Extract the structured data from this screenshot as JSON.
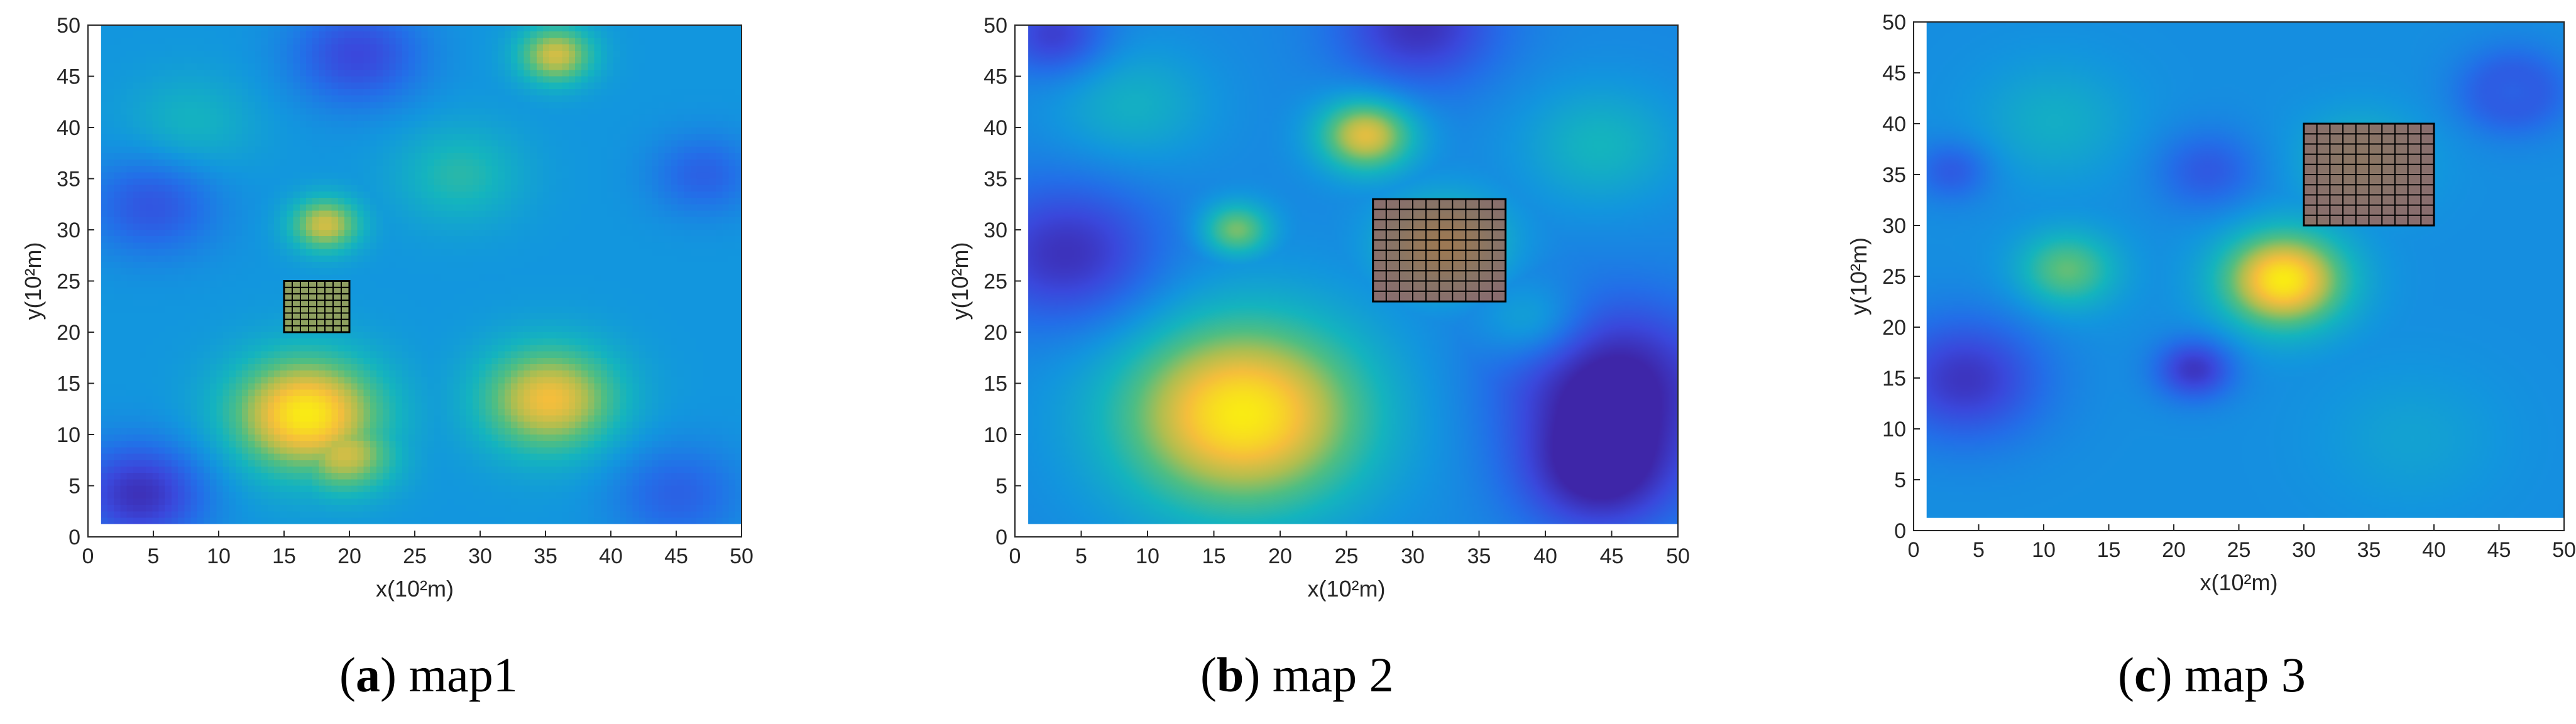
{
  "chart_data": [
    {
      "type": "heatmap",
      "panel": "a",
      "caption_letter": "a",
      "caption_text": "map1",
      "xlabel": "x(10²m)",
      "ylabel": "y(10²m)",
      "xlim": [
        0,
        50
      ],
      "ylim": [
        0,
        50
      ],
      "xticks": [
        0,
        5,
        10,
        15,
        20,
        25,
        30,
        35,
        40,
        45,
        50
      ],
      "yticks": [
        0,
        5,
        10,
        15,
        20,
        25,
        30,
        35,
        40,
        45,
        50
      ],
      "pixelated": true,
      "background_level": 0.45,
      "hotspots": [
        {
          "x": 16,
          "y": 11,
          "r": 6,
          "peak": 1.0
        },
        {
          "x": 19,
          "y": 7,
          "r": 4,
          "peak": 0.85
        },
        {
          "x": 35,
          "y": 12.5,
          "r": 5.5,
          "peak": 0.9
        },
        {
          "x": 17.5,
          "y": 30,
          "r": 2.8,
          "peak": 0.85
        },
        {
          "x": 35.5,
          "y": 47,
          "r": 3,
          "peak": 0.85
        },
        {
          "x": 28,
          "y": 35,
          "r": 5,
          "peak": 0.62
        },
        {
          "x": 7,
          "y": 40,
          "r": 5,
          "peak": 0.58
        }
      ],
      "coldspots": [
        {
          "x": 3,
          "y": 3,
          "r": 5,
          "depth": 0.4
        },
        {
          "x": 4,
          "y": 32,
          "r": 5,
          "depth": 0.25
        },
        {
          "x": 20,
          "y": 47,
          "r": 5,
          "depth": 0.3
        },
        {
          "x": 47,
          "y": 35,
          "r": 4,
          "depth": 0.2
        },
        {
          "x": 45,
          "y": 3,
          "r": 5,
          "depth": 0.2
        }
      ],
      "grid_region": {
        "x0": 15,
        "x1": 20,
        "y0": 20,
        "y1": 25,
        "nx": 8,
        "ny": 8,
        "fill": "#b8a038"
      }
    },
    {
      "type": "heatmap",
      "panel": "b",
      "caption_letter": "b",
      "caption_text": "map 2",
      "xlabel": "x(10²m)",
      "ylabel": "y(10²m)",
      "xlim": [
        0,
        50
      ],
      "ylim": [
        0,
        50
      ],
      "xticks": [
        0,
        5,
        10,
        15,
        20,
        25,
        30,
        35,
        40,
        45,
        50
      ],
      "yticks": [
        0,
        5,
        10,
        15,
        20,
        25,
        30,
        35,
        40,
        45,
        50
      ],
      "pixelated": false,
      "background_level": 0.4,
      "hotspots": [
        {
          "x": 16.5,
          "y": 11,
          "r": 10,
          "peak": 1.0
        },
        {
          "x": 26,
          "y": 39,
          "r": 3.8,
          "peak": 0.88
        },
        {
          "x": 16,
          "y": 29.5,
          "r": 2.8,
          "peak": 0.75
        },
        {
          "x": 32,
          "y": 28,
          "r": 5,
          "peak": 0.72
        },
        {
          "x": 39,
          "y": 20,
          "r": 4,
          "peak": 0.6
        },
        {
          "x": 44,
          "y": 38,
          "r": 6,
          "peak": 0.58
        },
        {
          "x": 8,
          "y": 42,
          "r": 6,
          "peak": 0.56
        }
      ],
      "coldspots": [
        {
          "x": 3,
          "y": 27,
          "r": 7,
          "depth": 0.35
        },
        {
          "x": 45,
          "y": 14,
          "r": 8,
          "depth": 0.45
        },
        {
          "x": 44,
          "y": 5,
          "r": 6,
          "depth": 0.4
        },
        {
          "x": 30,
          "y": 50,
          "r": 6,
          "depth": 0.35
        },
        {
          "x": 2,
          "y": 49,
          "r": 4,
          "depth": 0.3
        }
      ],
      "grid_region": {
        "x0": 27,
        "x1": 37,
        "y0": 23,
        "y1": 33,
        "nx": 10,
        "ny": 10,
        "fill": "#b06048"
      }
    },
    {
      "type": "heatmap",
      "panel": "c",
      "caption_letter": "c",
      "caption_text": "map 3",
      "xlabel": "x(10²m)",
      "ylabel": "y(10²m)",
      "xlim": [
        0,
        50
      ],
      "ylim": [
        0,
        50
      ],
      "xticks": [
        0,
        5,
        10,
        15,
        20,
        25,
        30,
        35,
        40,
        45,
        50
      ],
      "yticks": [
        0,
        5,
        10,
        15,
        20,
        25,
        30,
        35,
        40,
        45,
        50
      ],
      "pixelated": false,
      "background_level": 0.42,
      "hotspots": [
        {
          "x": 28,
          "y": 24,
          "r": 5,
          "peak": 1.0
        },
        {
          "x": 11,
          "y": 25,
          "r": 4,
          "peak": 0.72
        },
        {
          "x": 34,
          "y": 36,
          "r": 5,
          "peak": 0.6
        },
        {
          "x": 46,
          "y": 43,
          "r": 2,
          "peak": 0.55
        },
        {
          "x": 10,
          "y": 40,
          "r": 6,
          "peak": 0.55
        },
        {
          "x": 38,
          "y": 8,
          "r": 7,
          "peak": 0.5
        }
      ],
      "coldspots": [
        {
          "x": 46,
          "y": 43,
          "r": 4,
          "depth": 0.3
        },
        {
          "x": 3,
          "y": 14,
          "r": 6,
          "depth": 0.35
        },
        {
          "x": 21,
          "y": 15,
          "r": 3,
          "depth": 0.35
        },
        {
          "x": 22,
          "y": 35,
          "r": 4,
          "depth": 0.2
        },
        {
          "x": 2,
          "y": 35,
          "r": 3,
          "depth": 0.2
        }
      ],
      "grid_region": {
        "x0": 30,
        "x1": 40,
        "y0": 30,
        "y1": 40,
        "nx": 10,
        "ny": 10,
        "fill": "#b06048"
      }
    }
  ]
}
